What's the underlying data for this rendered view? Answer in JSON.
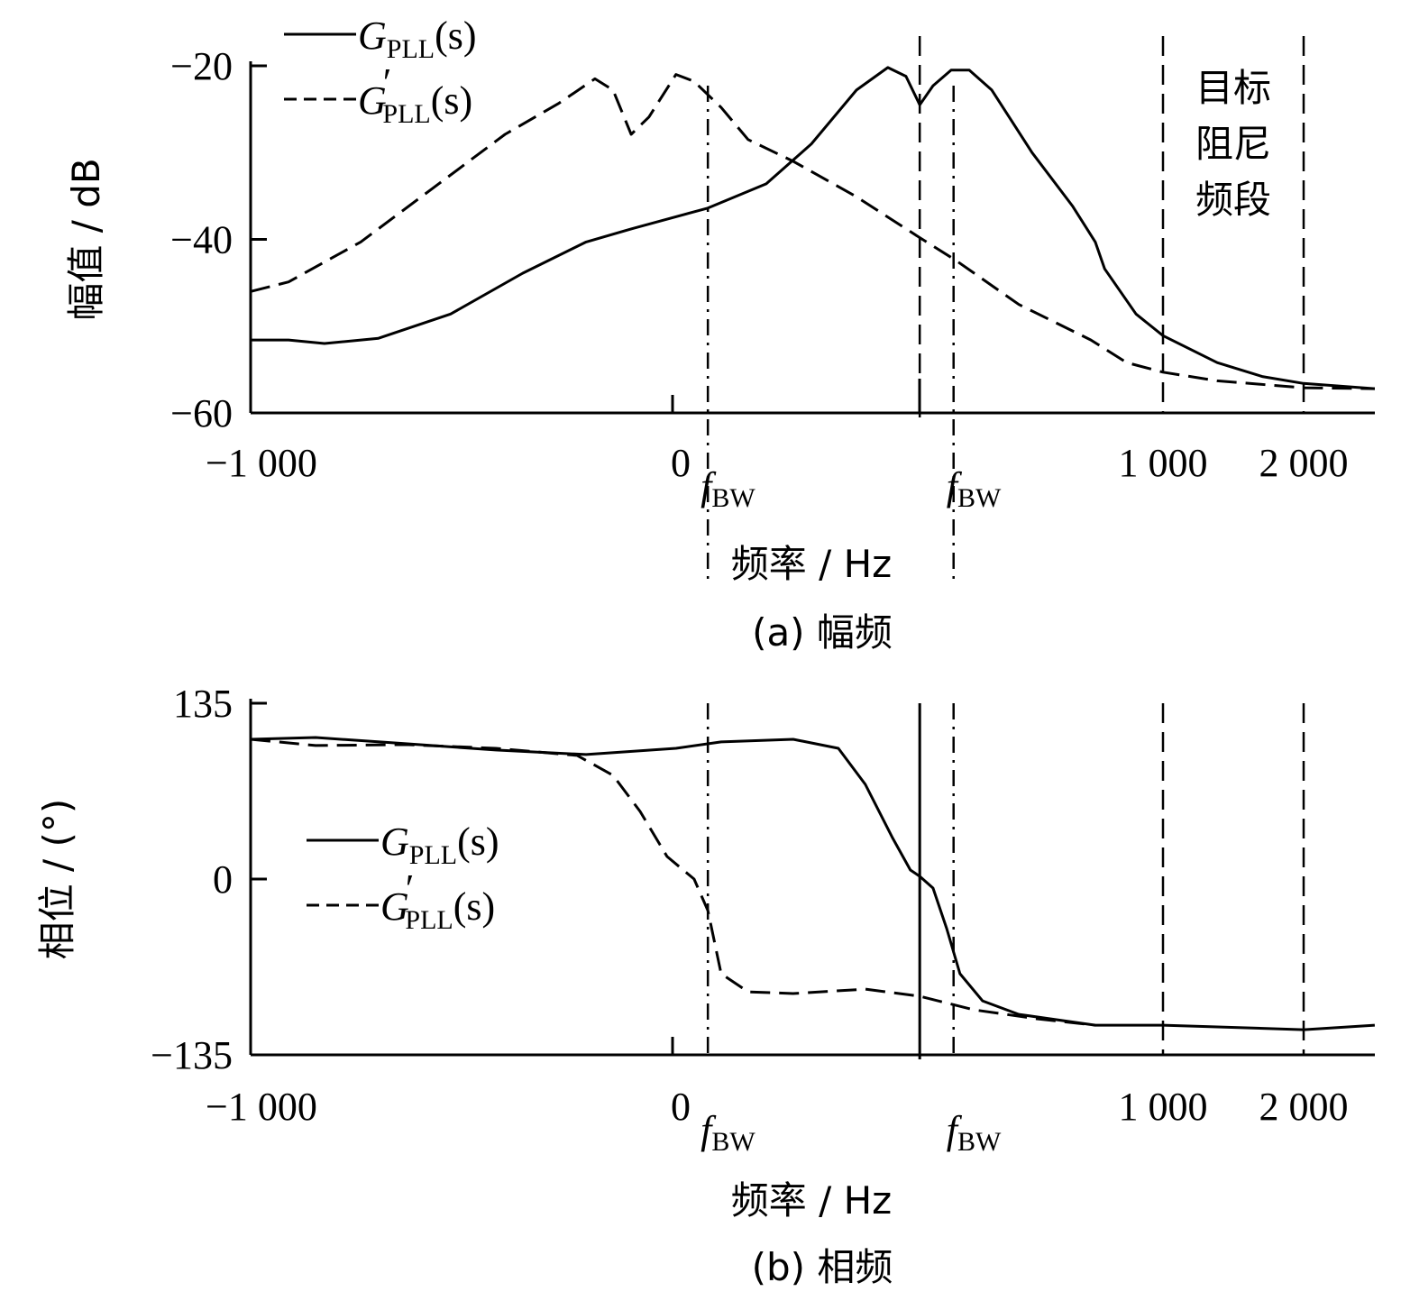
{
  "chart_data": [
    {
      "type": "line",
      "title": "(a) 幅频",
      "xlabel": "频率 / Hz",
      "ylabel": "幅值 / dB",
      "ylim": [
        -60,
        -20
      ],
      "yticks": [
        "-20",
        "-40",
        "-60"
      ],
      "ytick_values": [
        -20,
        -40,
        -60
      ],
      "xticks": [
        "-1 000",
        "0",
        "1 000",
        "2 000"
      ],
      "xtick_values": [
        -1000,
        0,
        1000,
        2000
      ],
      "x_scale": "piecewise-linear between ticks",
      "markers": [
        {
          "label": "f",
          "sub": "BW",
          "x": 72,
          "style": "dashdot"
        },
        {
          "label": "f",
          "sub": "BW",
          "x": 573,
          "style": "dashdot"
        }
      ],
      "extra_lines": [
        {
          "x": 504,
          "style": "dashed"
        },
        {
          "x": 1000,
          "style": "dashed"
        },
        {
          "x": 2000,
          "style": "dashed"
        }
      ],
      "annotation": [
        "目标",
        "阻尼",
        "频段"
      ],
      "legend": {
        "placement": "top-left",
        "entries": [
          {
            "main": "G",
            "sub": "PLL",
            "arg": "(s)",
            "prime": false,
            "style": "solid"
          },
          {
            "main": "G",
            "sub": "PLL",
            "arg": "(s)",
            "prime": true,
            "style": "dashed"
          }
        ]
      },
      "series": [
        {
          "name": "G_PLL(s)",
          "style": "solid",
          "x": [
            -1000,
            -910,
            -825,
            -697,
            -526,
            -355,
            -205,
            -98,
            72,
            191,
            283,
            375,
            439,
            476,
            504,
            531,
            568,
            605,
            651,
            733,
            816,
            862,
            881,
            945,
            1000,
            1385,
            1705,
            2000,
            2506
          ],
          "y": [
            -51.6,
            -51.6,
            -52.0,
            -51.4,
            -48.6,
            -43.9,
            -40.3,
            -38.8,
            -36.4,
            -33.6,
            -29.0,
            -22.8,
            -20.2,
            -21.2,
            -24.5,
            -22.3,
            -20.5,
            -20.5,
            -22.8,
            -30.0,
            -36.2,
            -40.3,
            -43.4,
            -48.6,
            -51.1,
            -54.2,
            -55.8,
            -56.6,
            -57.2
          ]
        },
        {
          "name": "G'_PLL(s)",
          "style": "dashed",
          "x": [
            -1000,
            -910,
            -739,
            -568,
            -397,
            -269,
            -184,
            -141,
            -98,
            -56,
            7,
            44,
            99,
            154,
            246,
            375,
            504,
            577,
            706,
            853,
            926,
            1000,
            1385,
            2000,
            2506
          ],
          "y": [
            -46.0,
            -44.9,
            -40.3,
            -34.1,
            -27.9,
            -24.3,
            -21.5,
            -22.8,
            -27.9,
            -25.9,
            -21.0,
            -21.8,
            -24.8,
            -28.5,
            -31.0,
            -35.1,
            -39.8,
            -42.4,
            -47.5,
            -51.6,
            -54.2,
            -55.3,
            -56.3,
            -57.1,
            -57.2
          ]
        }
      ]
    },
    {
      "type": "line",
      "title": "(b) 相频",
      "xlabel": "频率 / Hz",
      "ylabel": "相位 / (°)",
      "ylim": [
        -135,
        135
      ],
      "yticks": [
        "135",
        "0",
        "-135"
      ],
      "ytick_values": [
        135,
        0,
        -135
      ],
      "xticks": [
        "-1 000",
        "0",
        "1 000",
        "2 000"
      ],
      "xtick_values": [
        -1000,
        0,
        1000,
        2000
      ],
      "markers": [
        {
          "label": "f",
          "sub": "BW",
          "x": 72,
          "style": "dashdot"
        },
        {
          "label": "f",
          "sub": "BW",
          "x": 573,
          "style": "dashdot"
        }
      ],
      "extra_lines": [
        {
          "x": 504,
          "style": "solid"
        },
        {
          "x": 1000,
          "style": "dashed"
        },
        {
          "x": 2000,
          "style": "dashed"
        }
      ],
      "legend": {
        "placement": "center-left",
        "entries": [
          {
            "main": "G",
            "sub": "PLL",
            "arg": "(s)",
            "prime": false,
            "style": "solid"
          },
          {
            "main": "G",
            "sub": "PLL",
            "arg": "(s)",
            "prime": true,
            "style": "dashed"
          }
        ]
      },
      "series": [
        {
          "name": "G_PLL(s)",
          "style": "solid",
          "x": [
            -1000,
            -846,
            -632,
            -419,
            -205,
            7,
            99,
            246,
            338,
            393,
            449,
            485,
            504,
            531,
            559,
            586,
            632,
            706,
            862,
            1000,
            2000,
            2506
          ],
          "y": [
            107.3,
            108.7,
            103.9,
            99.1,
            95.6,
            100.4,
            105.3,
            107.3,
            100.4,
            72.7,
            31.2,
            6.9,
            2.1,
            -6.9,
            -38.1,
            -72.7,
            -93.5,
            -103.9,
            -112.2,
            -112.2,
            -115.7,
            -112.2
          ]
        },
        {
          "name": "G'_PLL(s)",
          "style": "dashed",
          "x": [
            -1000,
            -846,
            -632,
            -419,
            -226,
            -141,
            -77,
            -13,
            44,
            72,
            99,
            154,
            246,
            393,
            504,
            614,
            743,
            862
          ],
          "y": [
            107.3,
            102.5,
            103.2,
            100.4,
            94.9,
            79.6,
            51.9,
            17.3,
            0,
            -24.2,
            -72.7,
            -86.6,
            -87.9,
            -84.5,
            -90.0,
            -100.4,
            -107.3,
            -112.2
          ]
        }
      ]
    }
  ]
}
